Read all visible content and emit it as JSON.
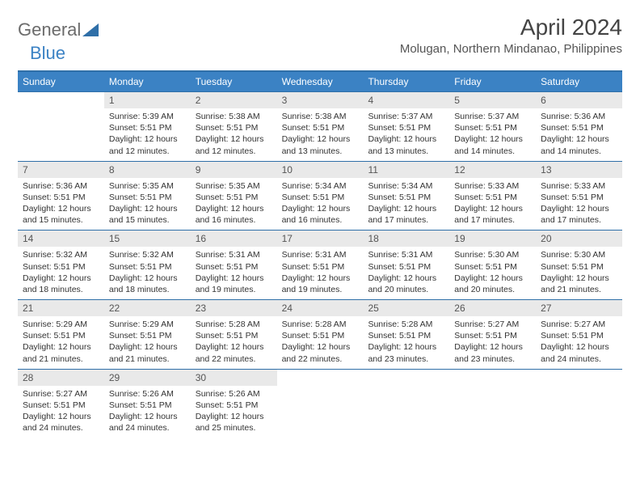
{
  "logo": {
    "text1": "General",
    "text2": "Blue"
  },
  "title": "April 2024",
  "location": "Molugan, Northern Mindanao, Philippines",
  "colors": {
    "header_bg": "#3b82c4",
    "header_text": "#ffffff",
    "border": "#2f6fa8",
    "daynum_bg": "#e9e9e9",
    "text": "#333333"
  },
  "dayNames": [
    "Sunday",
    "Monday",
    "Tuesday",
    "Wednesday",
    "Thursday",
    "Friday",
    "Saturday"
  ],
  "weeks": [
    [
      {
        "n": "",
        "sr": "",
        "ss": "",
        "dl": ""
      },
      {
        "n": "1",
        "sr": "5:39 AM",
        "ss": "5:51 PM",
        "dl": "12 hours and 12 minutes."
      },
      {
        "n": "2",
        "sr": "5:38 AM",
        "ss": "5:51 PM",
        "dl": "12 hours and 12 minutes."
      },
      {
        "n": "3",
        "sr": "5:38 AM",
        "ss": "5:51 PM",
        "dl": "12 hours and 13 minutes."
      },
      {
        "n": "4",
        "sr": "5:37 AM",
        "ss": "5:51 PM",
        "dl": "12 hours and 13 minutes."
      },
      {
        "n": "5",
        "sr": "5:37 AM",
        "ss": "5:51 PM",
        "dl": "12 hours and 14 minutes."
      },
      {
        "n": "6",
        "sr": "5:36 AM",
        "ss": "5:51 PM",
        "dl": "12 hours and 14 minutes."
      }
    ],
    [
      {
        "n": "7",
        "sr": "5:36 AM",
        "ss": "5:51 PM",
        "dl": "12 hours and 15 minutes."
      },
      {
        "n": "8",
        "sr": "5:35 AM",
        "ss": "5:51 PM",
        "dl": "12 hours and 15 minutes."
      },
      {
        "n": "9",
        "sr": "5:35 AM",
        "ss": "5:51 PM",
        "dl": "12 hours and 16 minutes."
      },
      {
        "n": "10",
        "sr": "5:34 AM",
        "ss": "5:51 PM",
        "dl": "12 hours and 16 minutes."
      },
      {
        "n": "11",
        "sr": "5:34 AM",
        "ss": "5:51 PM",
        "dl": "12 hours and 17 minutes."
      },
      {
        "n": "12",
        "sr": "5:33 AM",
        "ss": "5:51 PM",
        "dl": "12 hours and 17 minutes."
      },
      {
        "n": "13",
        "sr": "5:33 AM",
        "ss": "5:51 PM",
        "dl": "12 hours and 17 minutes."
      }
    ],
    [
      {
        "n": "14",
        "sr": "5:32 AM",
        "ss": "5:51 PM",
        "dl": "12 hours and 18 minutes."
      },
      {
        "n": "15",
        "sr": "5:32 AM",
        "ss": "5:51 PM",
        "dl": "12 hours and 18 minutes."
      },
      {
        "n": "16",
        "sr": "5:31 AM",
        "ss": "5:51 PM",
        "dl": "12 hours and 19 minutes."
      },
      {
        "n": "17",
        "sr": "5:31 AM",
        "ss": "5:51 PM",
        "dl": "12 hours and 19 minutes."
      },
      {
        "n": "18",
        "sr": "5:31 AM",
        "ss": "5:51 PM",
        "dl": "12 hours and 20 minutes."
      },
      {
        "n": "19",
        "sr": "5:30 AM",
        "ss": "5:51 PM",
        "dl": "12 hours and 20 minutes."
      },
      {
        "n": "20",
        "sr": "5:30 AM",
        "ss": "5:51 PM",
        "dl": "12 hours and 21 minutes."
      }
    ],
    [
      {
        "n": "21",
        "sr": "5:29 AM",
        "ss": "5:51 PM",
        "dl": "12 hours and 21 minutes."
      },
      {
        "n": "22",
        "sr": "5:29 AM",
        "ss": "5:51 PM",
        "dl": "12 hours and 21 minutes."
      },
      {
        "n": "23",
        "sr": "5:28 AM",
        "ss": "5:51 PM",
        "dl": "12 hours and 22 minutes."
      },
      {
        "n": "24",
        "sr": "5:28 AM",
        "ss": "5:51 PM",
        "dl": "12 hours and 22 minutes."
      },
      {
        "n": "25",
        "sr": "5:28 AM",
        "ss": "5:51 PM",
        "dl": "12 hours and 23 minutes."
      },
      {
        "n": "26",
        "sr": "5:27 AM",
        "ss": "5:51 PM",
        "dl": "12 hours and 23 minutes."
      },
      {
        "n": "27",
        "sr": "5:27 AM",
        "ss": "5:51 PM",
        "dl": "12 hours and 24 minutes."
      }
    ],
    [
      {
        "n": "28",
        "sr": "5:27 AM",
        "ss": "5:51 PM",
        "dl": "12 hours and 24 minutes."
      },
      {
        "n": "29",
        "sr": "5:26 AM",
        "ss": "5:51 PM",
        "dl": "12 hours and 24 minutes."
      },
      {
        "n": "30",
        "sr": "5:26 AM",
        "ss": "5:51 PM",
        "dl": "12 hours and 25 minutes."
      },
      {
        "n": "",
        "sr": "",
        "ss": "",
        "dl": ""
      },
      {
        "n": "",
        "sr": "",
        "ss": "",
        "dl": ""
      },
      {
        "n": "",
        "sr": "",
        "ss": "",
        "dl": ""
      },
      {
        "n": "",
        "sr": "",
        "ss": "",
        "dl": ""
      }
    ]
  ],
  "labels": {
    "sunrise": "Sunrise: ",
    "sunset": "Sunset: ",
    "daylight": "Daylight: "
  }
}
